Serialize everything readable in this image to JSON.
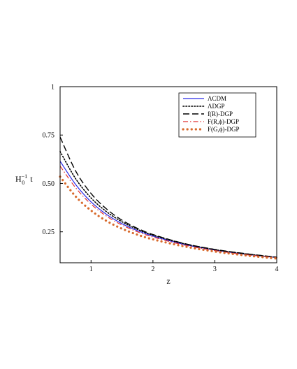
{
  "chart_data": {
    "type": "line",
    "xlabel": "z",
    "ylabel": {
      "base": "H",
      "sub": "0",
      "sup": "−1",
      "tail": "t"
    },
    "xlim": [
      0.5,
      4
    ],
    "ylim": [
      0.09,
      1.0
    ],
    "x_ticks": [
      1,
      2,
      3,
      4
    ],
    "y_ticks": [
      0.25,
      0.5,
      0.75,
      1
    ],
    "y_tick_labels": [
      "0.25",
      "0.50",
      "0.75",
      "1"
    ],
    "grid": false,
    "legend_position": "top-right",
    "series": [
      {
        "name": "ΛCDM",
        "color": "#2a2ae8",
        "dash": "solid",
        "x": [
          0.5,
          0.75,
          1.0,
          1.25,
          1.5,
          1.75,
          2.0,
          2.5,
          3.0,
          3.5,
          4.0
        ],
        "y": [
          0.615,
          0.495,
          0.405,
          0.34,
          0.292,
          0.256,
          0.228,
          0.185,
          0.156,
          0.134,
          0.117
        ]
      },
      {
        "name": "ΛDGP",
        "color": "#000000",
        "dash": "dotted",
        "x": [
          0.5,
          0.75,
          1.0,
          1.25,
          1.5,
          1.75,
          2.0,
          2.5,
          3.0,
          3.5,
          4.0
        ],
        "y": [
          0.665,
          0.525,
          0.425,
          0.354,
          0.302,
          0.263,
          0.233,
          0.189,
          0.158,
          0.136,
          0.118
        ]
      },
      {
        "name": "f(R)-DGP",
        "color": "#000000",
        "dash": "dashed",
        "x": [
          0.5,
          0.75,
          1.0,
          1.25,
          1.5,
          1.75,
          2.0,
          2.5,
          3.0,
          3.5,
          4.0
        ],
        "y": [
          0.74,
          0.565,
          0.448,
          0.368,
          0.31,
          0.268,
          0.236,
          0.19,
          0.159,
          0.137,
          0.119
        ]
      },
      {
        "name": "F(R,ϕ)-DGP",
        "color": "#e03030",
        "dash": "dashdot",
        "x": [
          0.5,
          0.75,
          1.0,
          1.25,
          1.5,
          1.75,
          2.0,
          2.5,
          3.0,
          3.5,
          4.0
        ],
        "y": [
          0.59,
          0.478,
          0.393,
          0.331,
          0.285,
          0.25,
          0.223,
          0.182,
          0.153,
          0.132,
          0.116
        ]
      },
      {
        "name": "F(G,ϕ)-DGP",
        "color": "#d86a2c",
        "dash": "bigdots",
        "x": [
          0.5,
          0.75,
          1.0,
          1.25,
          1.5,
          1.75,
          2.0,
          2.5,
          3.0,
          3.5,
          4.0
        ],
        "y": [
          0.535,
          0.433,
          0.36,
          0.306,
          0.266,
          0.235,
          0.211,
          0.175,
          0.148,
          0.128,
          0.112
        ]
      }
    ]
  }
}
